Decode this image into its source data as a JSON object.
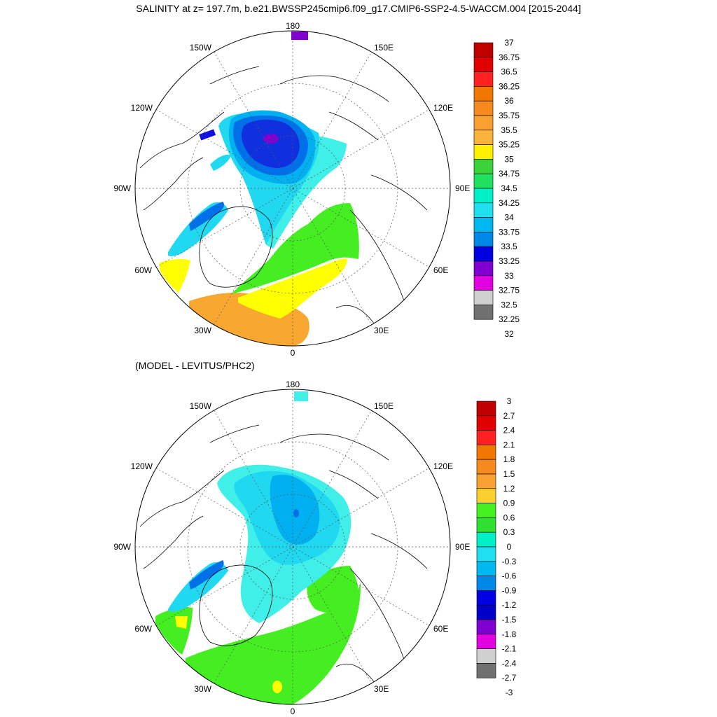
{
  "title": "SALINITY at z= 197.7m, b.e21.BWSSP245cmip6.f09_g17.CMIP6-SSP2-4.5-WACCM.004 [2015-2044]",
  "subtitle": "(MODEL - LEVITUS/PHC2)",
  "lon_labels": {
    "top": "180",
    "bottom": "0",
    "left": "90W",
    "right": "90E",
    "ul1": "150W",
    "ul2": "120W",
    "ur1": "150E",
    "ur2": "120E",
    "ll1": "60W",
    "ll2": "30W",
    "lr1": "60E",
    "lr2": "30E"
  },
  "colorbar_top": {
    "labels": [
      "37",
      "36.75",
      "36.5",
      "36.25",
      "36",
      "35.75",
      "35.5",
      "35.25",
      "35",
      "34.75",
      "34.5",
      "34.25",
      "34",
      "33.75",
      "33.5",
      "33.25",
      "33",
      "32.75",
      "32.5",
      "32.25",
      "32"
    ],
    "colors": [
      "#c00000",
      "#e00000",
      "#ff2020",
      "#f07800",
      "#f58a1e",
      "#f8a030",
      "#fab33a",
      "#fff000",
      "#3ad43a",
      "#20e060",
      "#00f0c8",
      "#20e0f0",
      "#00b8f0",
      "#0088e8",
      "#0000e0",
      "#8000d0",
      "#e000e0",
      "#d0d0d0",
      "#707070"
    ]
  },
  "colorbar_bottom": {
    "labels": [
      "3",
      "2.7",
      "2.4",
      "2.1",
      "1.8",
      "1.5",
      "1.2",
      "0.9",
      "0.6",
      "0.3",
      "0",
      "-0.3",
      "-0.6",
      "-0.9",
      "-1.2",
      "-1.5",
      "-1.8",
      "-2.1",
      "-2.4",
      "-2.7",
      "-3"
    ],
    "colors": [
      "#c00000",
      "#e00000",
      "#ff2020",
      "#f07800",
      "#f58a1e",
      "#f8a030",
      "#fad030",
      "#44f020",
      "#30e030",
      "#00f0c8",
      "#20e0f0",
      "#00b8f0",
      "#0088e8",
      "#0000e0",
      "#0000c8",
      "#8000d0",
      "#e000e0",
      "#d0d0d0",
      "#707070"
    ]
  },
  "colors": {
    "purple": "#8000d0",
    "deep_blue": "#1030e0",
    "blue": "#0070e8",
    "sky_blue": "#00b0f0",
    "light_blue": "#20d8f0",
    "cyan": "#40f0e8",
    "green": "#44ee20",
    "yellow": "#ffff00",
    "orange": "#f8a830",
    "land": "#ffffff"
  }
}
